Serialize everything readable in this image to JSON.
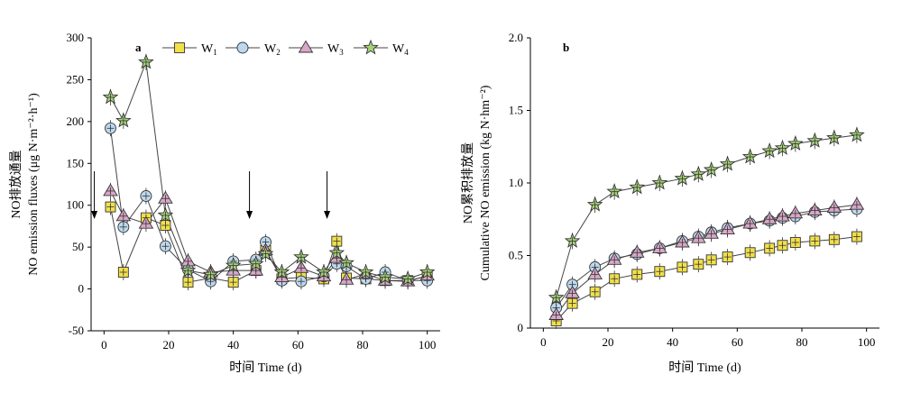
{
  "chart_data": [
    {
      "panel_label": "a",
      "type": "line",
      "xlabel": "时间 Time (d)",
      "ylabel_cn": "NO排放通量",
      "ylabel_en": "NO emission fluxes (μg N·m⁻²·h⁻¹)",
      "xlim": [
        -4,
        104
      ],
      "ylim": [
        -50,
        300
      ],
      "xticks": [
        0,
        20,
        40,
        60,
        80,
        100
      ],
      "yticks": [
        -50,
        0,
        50,
        100,
        150,
        200,
        250,
        300
      ],
      "arrows_x": [
        -3,
        45,
        69
      ],
      "legend": "top",
      "series": [
        {
          "name": "W1",
          "marker": "square",
          "color": "#f2e04a",
          "x": [
            2,
            6,
            13,
            19,
            26,
            33,
            40,
            47,
            50,
            55,
            61,
            68,
            72,
            75,
            81,
            87,
            94,
            100
          ],
          "y": [
            98,
            20,
            85,
            76,
            8,
            13,
            8,
            22,
            46,
            12,
            14,
            12,
            57,
            13,
            12,
            10,
            10,
            15
          ]
        },
        {
          "name": "W2",
          "marker": "circle",
          "color": "#bcd8ee",
          "x": [
            2,
            6,
            13,
            19,
            26,
            33,
            40,
            47,
            50,
            55,
            61,
            68,
            72,
            75,
            81,
            87,
            94,
            100
          ],
          "y": [
            192,
            74,
            111,
            51,
            23,
            9,
            33,
            35,
            56,
            10,
            9,
            15,
            30,
            27,
            12,
            20,
            10,
            10
          ]
        },
        {
          "name": "W3",
          "marker": "triangle",
          "color": "#d9a7c8",
          "x": [
            2,
            6,
            13,
            19,
            26,
            33,
            40,
            47,
            50,
            55,
            61,
            68,
            72,
            75,
            81,
            87,
            94,
            100
          ],
          "y": [
            117,
            87,
            78,
            108,
            33,
            20,
            22,
            22,
            46,
            14,
            25,
            15,
            37,
            11,
            18,
            10,
            9,
            16
          ]
        },
        {
          "name": "W4",
          "marker": "star",
          "color": "#a6d17a",
          "x": [
            2,
            6,
            13,
            19,
            26,
            33,
            40,
            47,
            50,
            55,
            61,
            68,
            72,
            75,
            81,
            87,
            94,
            100
          ],
          "y": [
            229,
            201,
            271,
            88,
            22,
            17,
            28,
            30,
            42,
            20,
            38,
            20,
            43,
            31,
            20,
            14,
            12,
            20
          ]
        }
      ]
    },
    {
      "panel_label": "b",
      "type": "line",
      "xlabel": "时间 Time (d)",
      "ylabel_cn": "NO累积排放量",
      "ylabel_en": "Cumulative NO emission (kg N·hm⁻²)",
      "xlim": [
        -4,
        104
      ],
      "ylim": [
        0,
        2.0
      ],
      "xticks": [
        0,
        20,
        40,
        60,
        80,
        100
      ],
      "yticks": [
        0,
        0.5,
        1.0,
        1.5,
        2.0
      ],
      "ytick_labels": [
        "0",
        "0.5",
        "1.0",
        "1.5",
        "2.0"
      ],
      "series": [
        {
          "name": "W1",
          "marker": "square",
          "color": "#f2e04a",
          "x": [
            4,
            9,
            16,
            22,
            29,
            36,
            43,
            48,
            52,
            57,
            64,
            70,
            74,
            78,
            84,
            90,
            97
          ],
          "y": [
            0.05,
            0.17,
            0.25,
            0.34,
            0.37,
            0.39,
            0.42,
            0.44,
            0.47,
            0.49,
            0.52,
            0.55,
            0.57,
            0.59,
            0.6,
            0.61,
            0.63
          ]
        },
        {
          "name": "W2",
          "marker": "circle",
          "color": "#bcd8ee",
          "x": [
            4,
            9,
            16,
            22,
            29,
            36,
            43,
            48,
            52,
            57,
            64,
            70,
            74,
            78,
            84,
            90,
            97
          ],
          "y": [
            0.14,
            0.3,
            0.42,
            0.48,
            0.51,
            0.55,
            0.6,
            0.63,
            0.66,
            0.69,
            0.72,
            0.74,
            0.76,
            0.77,
            0.8,
            0.81,
            0.82
          ]
        },
        {
          "name": "W3",
          "marker": "triangle",
          "color": "#d9a7c8",
          "x": [
            4,
            9,
            16,
            22,
            29,
            36,
            43,
            48,
            52,
            57,
            64,
            70,
            74,
            78,
            84,
            90,
            97
          ],
          "y": [
            0.09,
            0.24,
            0.37,
            0.47,
            0.52,
            0.55,
            0.59,
            0.62,
            0.65,
            0.68,
            0.72,
            0.75,
            0.77,
            0.79,
            0.81,
            0.83,
            0.85
          ]
        },
        {
          "name": "W4",
          "marker": "star",
          "color": "#a6d17a",
          "x": [
            4,
            9,
            16,
            22,
            29,
            36,
            43,
            48,
            52,
            57,
            64,
            70,
            74,
            78,
            84,
            90,
            97
          ],
          "y": [
            0.21,
            0.6,
            0.85,
            0.94,
            0.97,
            1.0,
            1.03,
            1.06,
            1.09,
            1.13,
            1.18,
            1.22,
            1.24,
            1.27,
            1.29,
            1.31,
            1.33
          ]
        }
      ]
    }
  ],
  "legend_labels": [
    {
      "base": "W",
      "sub": "1"
    },
    {
      "base": "W",
      "sub": "2"
    },
    {
      "base": "W",
      "sub": "3"
    },
    {
      "base": "W",
      "sub": "4"
    }
  ]
}
